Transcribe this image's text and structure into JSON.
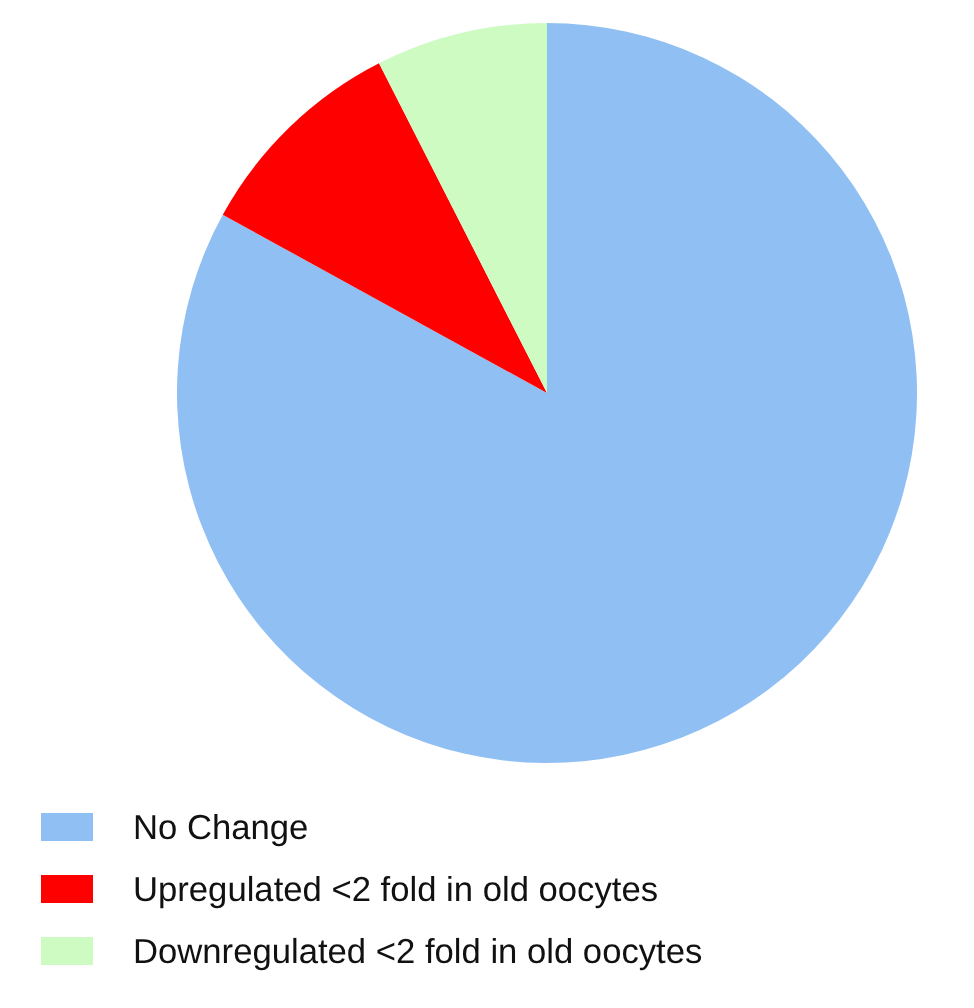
{
  "chart_data": {
    "type": "pie",
    "categories": [
      "No Change",
      "Upregulated <2 fold in old oocytes",
      "Downregulated <2 fold in old oocytes"
    ],
    "values": [
      83,
      9.5,
      7.5
    ],
    "colors": [
      "#90bff4",
      "#fe0000",
      "#cdfbc2"
    ],
    "legend": "bottom"
  }
}
